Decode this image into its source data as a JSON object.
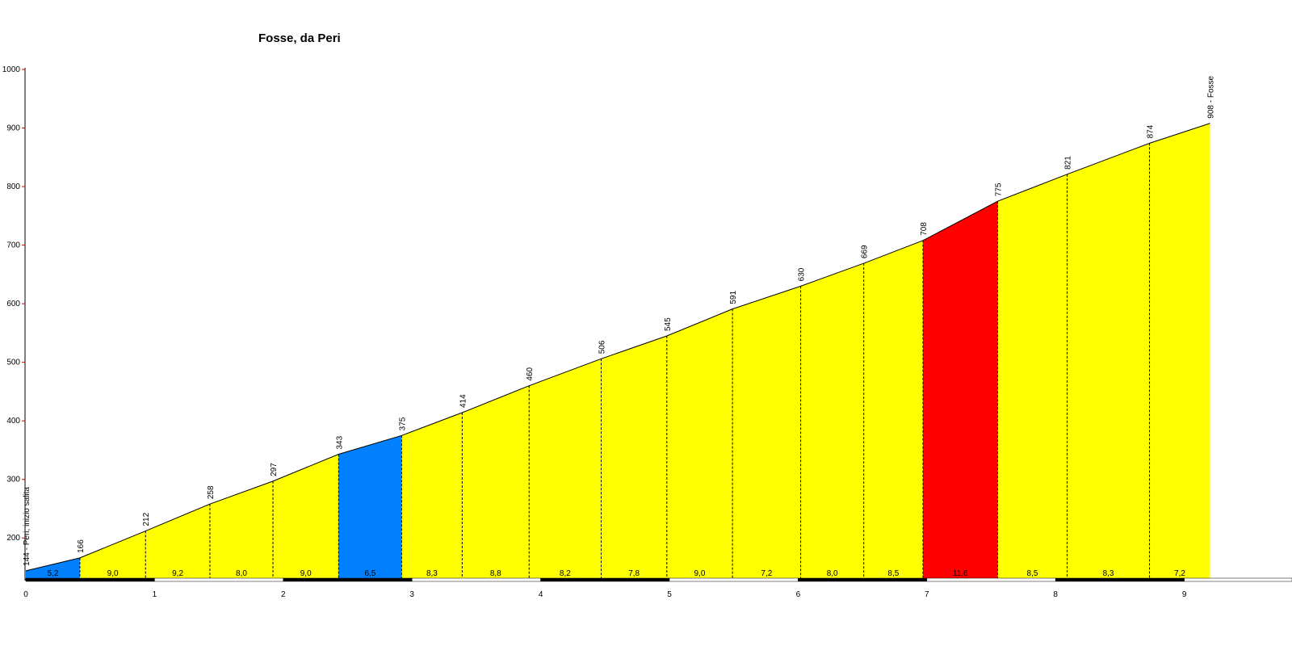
{
  "chart_data": {
    "type": "area",
    "title": "Fosse, da Peri",
    "xlabel": "",
    "ylabel": "",
    "xlim": [
      0,
      9.65
    ],
    "ylim": [
      130,
      1000
    ],
    "x_ticks": [
      "0",
      "1",
      "2",
      "3",
      "4",
      "5",
      "6",
      "7",
      "8",
      "9"
    ],
    "y_ticks": [
      "200",
      "300",
      "400",
      "500",
      "600",
      "700",
      "800",
      "900",
      "1000"
    ],
    "grid": false,
    "points": [
      {
        "km": 0.0,
        "alt": 144,
        "label": "144 - Peri, inizio salita"
      },
      {
        "km": 0.42,
        "alt": 166,
        "label": "166"
      },
      {
        "km": 0.93,
        "alt": 212,
        "label": "212"
      },
      {
        "km": 1.43,
        "alt": 258,
        "label": "258"
      },
      {
        "km": 1.92,
        "alt": 297,
        "label": "297"
      },
      {
        "km": 2.43,
        "alt": 343,
        "label": "343"
      },
      {
        "km": 2.92,
        "alt": 375,
        "label": "375"
      },
      {
        "km": 3.39,
        "alt": 414,
        "label": "414"
      },
      {
        "km": 3.91,
        "alt": 460,
        "label": "460"
      },
      {
        "km": 4.47,
        "alt": 506,
        "label": "506"
      },
      {
        "km": 4.98,
        "alt": 545,
        "label": "545"
      },
      {
        "km": 5.49,
        "alt": 591,
        "label": "591"
      },
      {
        "km": 6.02,
        "alt": 630,
        "label": "630"
      },
      {
        "km": 6.51,
        "alt": 669,
        "label": "669"
      },
      {
        "km": 6.97,
        "alt": 708,
        "label": "708"
      },
      {
        "km": 7.55,
        "alt": 775,
        "label": "775"
      },
      {
        "km": 8.09,
        "alt": 821,
        "label": "821"
      },
      {
        "km": 8.73,
        "alt": 874,
        "label": "874"
      },
      {
        "km": 9.2,
        "alt": 908,
        "label": "908 - Fosse"
      }
    ],
    "gradients": [
      "5,2",
      "9,0",
      "9,2",
      "8,0",
      "9,0",
      "6,5",
      "8,3",
      "8,8",
      "8,2",
      "7,8",
      "9,0",
      "7,2",
      "8,0",
      "8,5",
      "11,6",
      "8,5",
      "8,3",
      "7,2"
    ],
    "segment_colors": [
      "#0080ff",
      "#ffff00",
      "#ffff00",
      "#ffff00",
      "#ffff00",
      "#0080ff",
      "#ffff00",
      "#ffff00",
      "#ffff00",
      "#ffff00",
      "#ffff00",
      "#ffff00",
      "#ffff00",
      "#ffff00",
      "#ff0000",
      "#ffff00",
      "#ffff00",
      "#ffff00"
    ],
    "colors": {
      "axis": "#000000",
      "ytick_mark": "#cc0000",
      "outline": "#000000"
    }
  }
}
